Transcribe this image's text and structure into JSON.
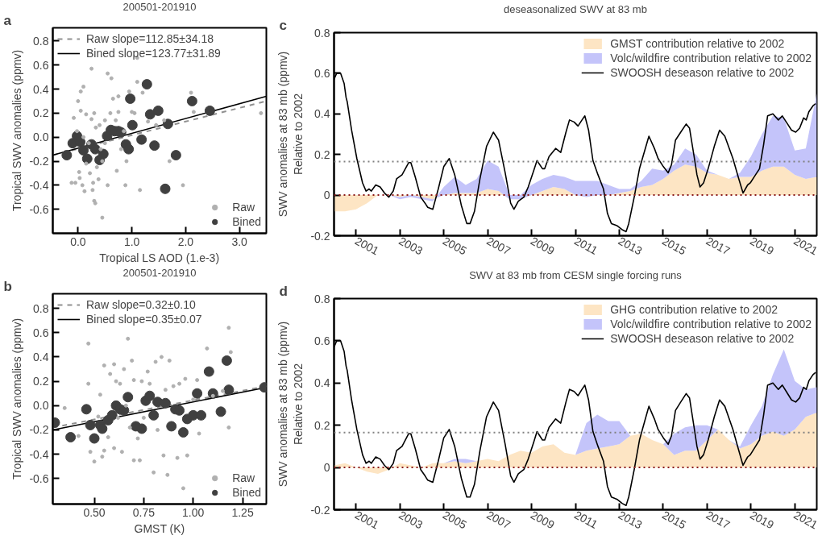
{
  "chart_data": [
    {
      "type": "scatter",
      "title": "200501-201910",
      "xlabel": "Tropical LS AOD (1.e-3)",
      "ylabel": "Tropical SWV anomalies (ppmv)",
      "annotations": [
        "a"
      ],
      "legend": "top left",
      "xlim": [
        -0.47,
        3.5
      ],
      "xticks": [
        {
          "value": 0,
          "label": "0.0"
        },
        {
          "value": 1,
          "label": "1.0"
        },
        {
          "value": 2,
          "label": "2.0"
        },
        {
          "value": 3,
          "label": "3.0"
        }
      ],
      "ylim": [
        -0.8,
        0.91
      ],
      "yticks": [
        -0.6,
        -0.4,
        -0.2,
        {
          "value": 0,
          "label": "0.0"
        },
        0.2,
        0.4,
        0.6,
        0.8
      ],
      "series": [
        {
          "name": "Raw",
          "color": "#b0b0b0",
          "marker": "circle",
          "x": [
            -0.12,
            -0.08,
            -0.05,
            -0.02,
            0.0,
            0.02,
            0.03,
            0.05,
            0.05,
            0.08,
            0.1,
            0.1,
            0.12,
            0.15,
            0.15,
            0.2,
            0.22,
            0.25,
            0.25,
            0.27,
            0.28,
            0.3,
            0.3,
            0.32,
            0.33,
            0.35,
            0.38,
            0.4,
            0.42,
            0.45,
            0.45,
            0.5,
            0.5,
            0.55,
            0.55,
            0.6,
            0.62,
            0.65,
            0.7,
            0.72,
            0.75,
            0.75,
            0.8,
            0.85,
            0.88,
            0.9,
            0.95,
            1.0,
            1.05,
            1.1,
            1.1,
            1.15,
            1.2,
            1.3,
            1.45,
            1.6,
            1.7,
            1.95,
            2.1,
            2.15,
            3.4
          ],
          "values": [
            -0.38,
            0.16,
            -0.38,
            0.05,
            0.3,
            -0.29,
            -0.34,
            0.22,
            0.38,
            -0.4,
            0.42,
            0.0,
            -0.45,
            -0.22,
            0.19,
            -0.05,
            -0.3,
            0.15,
            0.57,
            -0.44,
            -0.38,
            -0.53,
            0.2,
            -0.55,
            0.08,
            -0.25,
            -0.35,
            0.1,
            -0.1,
            -0.67,
            -0.2,
            0.14,
            -0.05,
            0.53,
            -0.4,
            0.2,
            0.49,
            0.32,
            0.14,
            -0.28,
            0.34,
            0.21,
            -0.1,
            0.05,
            -0.4,
            -0.2,
            0.38,
            0.21,
            0.2,
            0.66,
            0.46,
            -0.44,
            0.37,
            0.13,
            0.1,
            0.14,
            -0.2,
            -0.4,
            0.37,
            0.21,
            0.2
          ]
        },
        {
          "type": "bubble",
          "name": "Bined",
          "color": "#404040",
          "x": [
            -0.21,
            -0.1,
            -0.02,
            0.04,
            0.1,
            0.17,
            0.25,
            0.32,
            0.4,
            0.47,
            0.54,
            0.61,
            0.68,
            0.75,
            0.8,
            0.89,
            0.94,
            1.01,
            0.97,
            1.18,
            1.28,
            1.34,
            1.42,
            1.49,
            1.62,
            1.67,
            1.82,
            2.12,
            2.45
          ],
          "values": [
            -0.15,
            -0.05,
            0.01,
            -0.04,
            -0.11,
            -0.18,
            -0.06,
            -0.1,
            -0.19,
            -0.14,
            0.01,
            0.06,
            0.05,
            0.05,
            0.04,
            -0.06,
            -0.1,
            0.1,
            0.32,
            -0.02,
            0.44,
            0.19,
            -0.07,
            0.22,
            -0.43,
            0.11,
            -0.15,
            0.3,
            0.22
          ],
          "sizes": [
            1,
            1,
            1,
            1,
            1,
            1,
            1,
            1,
            1,
            1,
            1,
            1,
            1,
            1,
            1,
            1,
            1,
            1,
            1,
            1,
            1,
            1,
            1,
            1,
            1,
            1,
            1,
            1,
            1
          ]
        },
        {
          "type": "line",
          "name": "Raw slope=112.85±34.18",
          "color": "#909090",
          "line_style": "dashed",
          "x": [
            -0.47,
            3.5
          ],
          "values": [
            -0.15,
            0.3
          ]
        },
        {
          "type": "line",
          "name": "Bined slope=123.77±31.89",
          "color": "#000000",
          "line_style": "solid",
          "x": [
            -0.47,
            3.5
          ],
          "values": [
            -0.15,
            0.34
          ]
        }
      ]
    },
    {
      "type": "scatter",
      "title": "200501-201910",
      "xlabel": "GMST (K)",
      "ylabel": "Tropical SWV anomalies (ppmv)",
      "annotations": [
        "b"
      ],
      "legend": "top left",
      "xlim": [
        0.29,
        1.37
      ],
      "xticks": [
        {
          "value": 0.5,
          "label": "0.50"
        },
        0.75,
        {
          "value": 1,
          "label": "1.00"
        },
        1.25
      ],
      "ylim": [
        -0.81,
        0.92
      ],
      "yticks": [
        -0.6,
        -0.4,
        -0.2,
        {
          "value": 0,
          "label": "0.0"
        },
        0.2,
        0.4,
        0.6,
        0.8
      ],
      "series": [
        {
          "name": "Raw",
          "color": "#b0b0b0",
          "marker": "circle",
          "x": [
            0.35,
            0.42,
            0.47,
            0.47,
            0.48,
            0.5,
            0.52,
            0.53,
            0.54,
            0.55,
            0.55,
            0.57,
            0.58,
            0.6,
            0.6,
            0.61,
            0.62,
            0.63,
            0.64,
            0.65,
            0.66,
            0.67,
            0.68,
            0.69,
            0.7,
            0.7,
            0.72,
            0.73,
            0.74,
            0.75,
            0.77,
            0.78,
            0.8,
            0.81,
            0.82,
            0.84,
            0.85,
            0.86,
            0.87,
            0.88,
            0.9,
            0.92,
            0.93,
            0.95,
            0.96,
            0.97,
            1.0,
            1.02,
            1.03,
            1.07,
            1.1,
            1.15,
            1.18,
            1.18,
            1.19
          ],
          "values": [
            -0.02,
            -0.25,
            0.51,
            0.18,
            -0.38,
            -0.46,
            -0.09,
            0.09,
            -0.42,
            0.33,
            -0.37,
            -0.26,
            0.26,
            0.34,
            -0.35,
            0.2,
            -0.1,
            0.18,
            -0.38,
            0.3,
            0.0,
            0.55,
            -0.18,
            0.37,
            -0.45,
            0.21,
            -0.27,
            -0.45,
            0.2,
            -0.1,
            0.28,
            0.18,
            -0.55,
            0.36,
            -0.2,
            0.4,
            -0.41,
            0.13,
            -0.57,
            0.37,
            0.16,
            -0.43,
            0.18,
            -0.68,
            0.22,
            -0.41,
            0.05,
            0.21,
            -0.23,
            0.47,
            0.08,
            0.12,
            0.64,
            -0.18,
            0.44
          ]
        },
        {
          "type": "bubble",
          "name": "Bined",
          "color": "#404040",
          "x": [
            0.3,
            0.38,
            0.46,
            0.48,
            0.5,
            0.53,
            0.54,
            0.57,
            0.59,
            0.61,
            0.63,
            0.65,
            0.67,
            0.71,
            0.74,
            0.76,
            0.78,
            0.8,
            0.82,
            0.86,
            0.89,
            0.91,
            0.93,
            0.95,
            0.97,
            1.0,
            1.02,
            1.04,
            1.08,
            1.1,
            1.14,
            1.17,
            1.18,
            1.36
          ],
          "values": [
            -0.14,
            -0.26,
            -0.03,
            -0.16,
            -0.27,
            -0.16,
            -0.19,
            -0.12,
            -0.08,
            0.0,
            -0.03,
            -0.04,
            0.07,
            -0.17,
            -0.19,
            0.04,
            0.08,
            -0.08,
            0.03,
            0.02,
            -0.17,
            -0.03,
            -0.04,
            -0.22,
            -0.11,
            -0.08,
            0.1,
            -0.08,
            0.28,
            0.1,
            -0.05,
            0.37,
            0.13,
            0.15
          ],
          "sizes": [
            1,
            1,
            1,
            1,
            1,
            1,
            1,
            1,
            1,
            1,
            1,
            1,
            1,
            1,
            1,
            1,
            1,
            1,
            1,
            1,
            1,
            1,
            1,
            1,
            1,
            1,
            1,
            1,
            1,
            1,
            1,
            1,
            1,
            1
          ]
        },
        {
          "type": "line",
          "name": "Raw slope=0.32±0.10",
          "color": "#909090",
          "line_style": "dashed",
          "x": [
            0.29,
            1.37
          ],
          "values": [
            -0.18,
            0.16
          ]
        },
        {
          "type": "line",
          "name": "Bined slope=0.35±0.07",
          "color": "#000000",
          "line_style": "solid",
          "x": [
            0.29,
            1.37
          ],
          "values": [
            -0.2,
            0.15
          ]
        }
      ]
    },
    {
      "type": "area",
      "stacked": true,
      "title": "deseasonalized SWV at 83 mb",
      "ylabel": "SWV anomalies at 83 mb (ppmv)\nRelative to 2002",
      "annotations": [
        "c"
      ],
      "legend": "top right",
      "xlim": [
        2000,
        2022
      ],
      "xticks": [
        2001,
        2003,
        2005,
        2007,
        2009,
        2011,
        2013,
        2015,
        2017,
        2019,
        2021
      ],
      "ylim": [
        -0.2,
        0.8
      ],
      "yticks": [
        -0.2,
        0,
        0.2,
        0.4,
        0.6,
        0.8
      ],
      "ref_lines": [
        {
          "axis": "y",
          "value": 0.165,
          "color": "#808080",
          "line_style": "dotted"
        },
        {
          "axis": "y",
          "value": 0,
          "color": "#8b1a1a",
          "line_style": "dotted"
        }
      ],
      "series": [
        {
          "name": "GMST contribution relative to 2002",
          "color": "#fde5c4",
          "x": [
            2000.0,
            2000.5,
            2001.0,
            2001.5,
            2002.0,
            2002.5,
            2003.0,
            2003.5,
            2004.0,
            2004.5,
            2005.0,
            2005.5,
            2006.0,
            2006.5,
            2007.0,
            2007.5,
            2008.0,
            2008.5,
            2009.0,
            2009.5,
            2010.0,
            2010.5,
            2011.0,
            2011.5,
            2012.0,
            2012.5,
            2013.0,
            2013.5,
            2014.0,
            2014.5,
            2015.0,
            2015.5,
            2016.0,
            2016.5,
            2017.0,
            2017.5,
            2018.0,
            2018.5,
            2019.0,
            2019.5,
            2020.0,
            2020.5,
            2021.0,
            2021.5,
            2022.0
          ],
          "values": [
            -0.08,
            -0.08,
            -0.07,
            -0.04,
            0.0,
            0.0,
            -0.01,
            0.0,
            -0.01,
            -0.02,
            0.0,
            0.01,
            0.01,
            0.01,
            0.03,
            0.02,
            -0.02,
            -0.02,
            0.0,
            0.02,
            0.04,
            0.03,
            0.0,
            -0.01,
            0.0,
            0.0,
            0.01,
            0.02,
            0.04,
            0.05,
            0.08,
            0.12,
            0.15,
            0.14,
            0.11,
            0.1,
            0.08,
            0.09,
            0.09,
            0.12,
            0.14,
            0.14,
            0.1,
            0.08,
            0.09
          ]
        },
        {
          "name": "Volc/wildfire contribution relative to 2002",
          "color": "#c4c4fa",
          "x": [
            2000.0,
            2000.5,
            2001.0,
            2001.5,
            2002.0,
            2002.5,
            2003.0,
            2003.5,
            2004.0,
            2004.5,
            2005.0,
            2005.5,
            2006.0,
            2006.5,
            2007.0,
            2007.5,
            2008.0,
            2008.5,
            2009.0,
            2009.5,
            2010.0,
            2010.5,
            2011.0,
            2011.5,
            2012.0,
            2012.5,
            2013.0,
            2013.5,
            2014.0,
            2014.5,
            2015.0,
            2015.5,
            2016.0,
            2016.5,
            2017.0,
            2017.5,
            2018.0,
            2018.5,
            2019.0,
            2019.5,
            2020.0,
            2020.5,
            2021.0,
            2021.5,
            2022.0
          ],
          "values": [
            0,
            0,
            0,
            0,
            0,
            0,
            -0.01,
            -0.01,
            -0.01,
            -0.01,
            0.04,
            0.08,
            0.04,
            0.07,
            0.14,
            0.12,
            0.02,
            0.02,
            0.05,
            0.06,
            0.06,
            0.06,
            0.07,
            0.08,
            0.07,
            0.05,
            0.02,
            0.01,
            0.03,
            0.08,
            0.04,
            0.03,
            0.08,
            0.06,
            0.01,
            0,
            0,
            0.02,
            0.1,
            0.18,
            0.25,
            0.24,
            0.12,
            0.15,
            0.41
          ]
        },
        {
          "type": "line",
          "name": "SWOOSH deseason relative to 2002",
          "color": "#000000",
          "x": [
            2000.0,
            2000.12,
            2000.3,
            2000.46,
            2000.55,
            2000.6,
            2000.8,
            2001.04,
            2001.3,
            2001.46,
            2001.6,
            2001.7,
            2001.9,
            2002.1,
            2002.3,
            2002.5,
            2002.7,
            2002.85,
            2003.1,
            2003.4,
            2003.5,
            2003.7,
            2003.95,
            2004.15,
            2004.27,
            2004.5,
            2004.75,
            2005.0,
            2005.25,
            2005.5,
            2005.8,
            2006.05,
            2006.2,
            2006.4,
            2006.65,
            2006.95,
            2007.26,
            2007.5,
            2007.8,
            2008.05,
            2008.2,
            2008.4,
            2008.65,
            2008.85,
            2009.1,
            2009.25,
            2009.5,
            2009.6,
            2009.8,
            2010.1,
            2010.33,
            2010.57,
            2010.73,
            2010.94,
            2011.12,
            2011.3,
            2011.43,
            2011.6,
            2011.8,
            2012.03,
            2012.28,
            2012.46,
            2012.64,
            2012.89,
            2013.13,
            2013.31,
            2013.43,
            2013.68,
            2013.92,
            2014.16,
            2014.35,
            2014.6,
            2014.77,
            2015.01,
            2015.23,
            2015.38,
            2015.56,
            2015.8,
            2016.05,
            2016.2,
            2016.41,
            2016.54,
            2016.68,
            2016.84,
            2017.05,
            2017.33,
            2017.57,
            2017.81,
            2018.18,
            2018.42,
            2018.64,
            2018.85,
            2018.97,
            2019.21,
            2019.39,
            2019.58,
            2019.76,
            2020.0,
            2020.25,
            2020.43,
            2020.61,
            2020.85,
            2021.04,
            2021.22,
            2021.4,
            2021.52,
            2021.64,
            2021.83,
            2021.95
          ],
          "values": [
            0.57,
            0.6,
            0.6,
            0.55,
            0.48,
            0.46,
            0.32,
            0.18,
            0.06,
            0.02,
            0.03,
            0.02,
            0.05,
            0.04,
            0.01,
            -0.01,
            0.02,
            0.08,
            0.1,
            0.16,
            0.16,
            0.09,
            -0.01,
            -0.04,
            -0.06,
            -0.07,
            0.03,
            0.14,
            0.18,
            0.1,
            -0.05,
            -0.14,
            -0.14,
            -0.08,
            0.08,
            0.24,
            0.31,
            0.27,
            0.11,
            -0.04,
            -0.07,
            -0.03,
            -0.01,
            0.04,
            0.12,
            0.17,
            0.13,
            0.13,
            0.19,
            0.23,
            0.21,
            0.31,
            0.37,
            0.36,
            0.34,
            0.37,
            0.39,
            0.32,
            0.17,
            0.1,
            0.03,
            -0.09,
            -0.14,
            -0.15,
            -0.17,
            -0.18,
            -0.14,
            -0.01,
            0.13,
            0.22,
            0.29,
            0.23,
            0.18,
            0.14,
            0.11,
            0.15,
            0.27,
            0.31,
            0.35,
            0.33,
            0.19,
            0.1,
            0.04,
            0.06,
            0.13,
            0.24,
            0.32,
            0.29,
            0.18,
            0.09,
            0.01,
            0.05,
            0.06,
            0.1,
            0.13,
            0.25,
            0.39,
            0.4,
            0.37,
            0.39,
            0.36,
            0.32,
            0.31,
            0.33,
            0.38,
            0.37,
            0.41,
            0.44,
            0.45
          ]
        }
      ]
    },
    {
      "type": "area",
      "stacked": true,
      "title": "SWV at 83 mb from CESM single forcing runs",
      "ylabel": "SWV anomalies at 83 mb (ppmv)\nRelative to 2002",
      "annotations": [
        "d"
      ],
      "legend": "top right",
      "xlim": [
        2000,
        2022
      ],
      "xticks": [
        2001,
        2003,
        2005,
        2007,
        2009,
        2011,
        2013,
        2015,
        2017,
        2019,
        2021
      ],
      "ylim": [
        -0.2,
        0.8
      ],
      "yticks": [
        -0.2,
        0,
        0.2,
        0.4,
        0.6,
        0.8
      ],
      "ref_lines": [
        {
          "axis": "y",
          "value": 0.165,
          "color": "#808080",
          "line_style": "dotted"
        },
        {
          "axis": "y",
          "value": 0,
          "color": "#8b1a1a",
          "line_style": "dotted"
        }
      ],
      "series": [
        {
          "name": "GHG contribution relative to 2002",
          "color": "#fde5c4",
          "x": [
            2000.0,
            2000.5,
            2001.0,
            2001.5,
            2002.0,
            2002.5,
            2003.0,
            2003.5,
            2004.0,
            2004.5,
            2005.0,
            2005.5,
            2006.0,
            2006.5,
            2007.0,
            2007.5,
            2008.0,
            2008.5,
            2009.0,
            2009.5,
            2010.0,
            2010.5,
            2011.0,
            2011.5,
            2012.0,
            2012.5,
            2013.0,
            2013.5,
            2014.0,
            2014.5,
            2015.0,
            2015.5,
            2016.0,
            2016.5,
            2017.0,
            2017.5,
            2018.0,
            2018.5,
            2019.0,
            2019.5,
            2020.0,
            2020.5,
            2021.0,
            2021.5,
            2022.0
          ],
          "values": [
            0.01,
            0.02,
            0.0,
            -0.02,
            -0.03,
            -0.01,
            0.02,
            0.01,
            0.0,
            0.02,
            0.02,
            0.03,
            0.02,
            0.03,
            0.04,
            0.03,
            0.06,
            0.08,
            0.07,
            0.1,
            0.11,
            0.07,
            0.06,
            0.08,
            0.09,
            0.1,
            0.11,
            0.15,
            0.16,
            0.13,
            0.11,
            0.06,
            0.08,
            0.08,
            0.13,
            0.18,
            0.13,
            0.09,
            0.11,
            0.15,
            0.17,
            0.15,
            0.18,
            0.24,
            0.26
          ]
        },
        {
          "name": "Volc/wildfire contribution relative to 2002",
          "color": "#c4c4fa",
          "x": [
            2000.0,
            2000.5,
            2001.0,
            2001.5,
            2002.0,
            2002.5,
            2003.0,
            2003.5,
            2004.0,
            2004.5,
            2005.0,
            2005.5,
            2006.0,
            2006.5,
            2007.0,
            2007.5,
            2008.0,
            2008.5,
            2009.0,
            2009.5,
            2010.0,
            2010.5,
            2011.0,
            2011.5,
            2012.0,
            2012.5,
            2013.0,
            2013.5,
            2014.0,
            2014.5,
            2015.0,
            2015.5,
            2016.0,
            2016.5,
            2017.0,
            2017.5,
            2018.0,
            2018.5,
            2019.0,
            2019.5,
            2020.0,
            2020.5,
            2021.0,
            2021.5,
            2022.0
          ],
          "values": [
            0,
            0,
            0,
            0,
            0,
            0,
            0,
            0,
            0,
            0,
            0,
            0.01,
            0.02,
            0,
            0,
            0,
            0,
            0,
            0,
            0,
            0,
            0,
            0,
            0.13,
            0.16,
            0.12,
            0.11,
            0,
            0,
            0,
            0,
            0.1,
            0.11,
            0.12,
            0.07,
            0,
            0,
            0.01,
            0.09,
            0.14,
            0.27,
            0.41,
            0.23,
            0.13,
            0.12
          ]
        },
        {
          "type": "line",
          "name": "SWOOSH deseason relative to 2002",
          "color": "#000000",
          "x": [
            2000.0,
            2000.12,
            2000.3,
            2000.46,
            2000.55,
            2000.6,
            2000.8,
            2001.04,
            2001.3,
            2001.46,
            2001.6,
            2001.7,
            2001.9,
            2002.1,
            2002.3,
            2002.5,
            2002.7,
            2002.85,
            2003.1,
            2003.4,
            2003.5,
            2003.7,
            2003.95,
            2004.15,
            2004.27,
            2004.5,
            2004.75,
            2005.0,
            2005.25,
            2005.5,
            2005.8,
            2006.05,
            2006.2,
            2006.4,
            2006.65,
            2006.95,
            2007.26,
            2007.5,
            2007.8,
            2008.05,
            2008.2,
            2008.4,
            2008.65,
            2008.85,
            2009.1,
            2009.25,
            2009.5,
            2009.6,
            2009.8,
            2010.1,
            2010.33,
            2010.57,
            2010.73,
            2010.94,
            2011.12,
            2011.3,
            2011.43,
            2011.6,
            2011.8,
            2012.03,
            2012.28,
            2012.46,
            2012.64,
            2012.89,
            2013.13,
            2013.31,
            2013.43,
            2013.68,
            2013.92,
            2014.16,
            2014.35,
            2014.6,
            2014.77,
            2015.01,
            2015.23,
            2015.38,
            2015.56,
            2015.8,
            2016.05,
            2016.2,
            2016.41,
            2016.54,
            2016.68,
            2016.84,
            2017.05,
            2017.33,
            2017.57,
            2017.81,
            2018.18,
            2018.42,
            2018.64,
            2018.85,
            2018.97,
            2019.21,
            2019.39,
            2019.58,
            2019.76,
            2020.0,
            2020.25,
            2020.43,
            2020.61,
            2020.85,
            2021.04,
            2021.22,
            2021.4,
            2021.52,
            2021.64,
            2021.83,
            2021.95
          ],
          "values": [
            0.57,
            0.6,
            0.6,
            0.55,
            0.48,
            0.46,
            0.32,
            0.18,
            0.06,
            0.02,
            0.03,
            0.02,
            0.05,
            0.04,
            0.01,
            -0.01,
            0.02,
            0.08,
            0.1,
            0.16,
            0.16,
            0.09,
            -0.01,
            -0.04,
            -0.06,
            -0.07,
            0.03,
            0.14,
            0.18,
            0.1,
            -0.05,
            -0.14,
            -0.14,
            -0.08,
            0.08,
            0.24,
            0.31,
            0.27,
            0.11,
            -0.04,
            -0.07,
            -0.03,
            -0.01,
            0.04,
            0.12,
            0.17,
            0.13,
            0.13,
            0.19,
            0.23,
            0.21,
            0.31,
            0.37,
            0.36,
            0.34,
            0.37,
            0.39,
            0.32,
            0.17,
            0.1,
            0.03,
            -0.09,
            -0.14,
            -0.15,
            -0.17,
            -0.18,
            -0.14,
            -0.01,
            0.13,
            0.22,
            0.29,
            0.23,
            0.18,
            0.14,
            0.11,
            0.15,
            0.27,
            0.31,
            0.35,
            0.33,
            0.19,
            0.1,
            0.04,
            0.06,
            0.13,
            0.24,
            0.32,
            0.29,
            0.18,
            0.09,
            0.01,
            0.05,
            0.06,
            0.1,
            0.13,
            0.25,
            0.39,
            0.4,
            0.37,
            0.39,
            0.36,
            0.32,
            0.31,
            0.33,
            0.38,
            0.37,
            0.41,
            0.44,
            0.45
          ]
        }
      ]
    }
  ]
}
